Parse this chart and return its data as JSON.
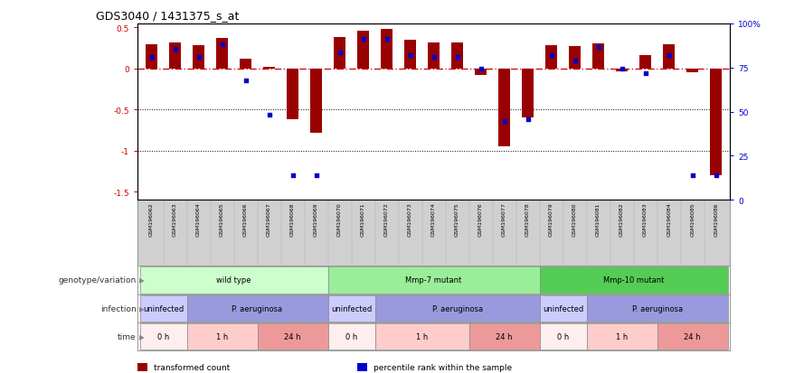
{
  "title": "GDS3040 / 1431375_s_at",
  "samples": [
    "GSM196062",
    "GSM196063",
    "GSM196064",
    "GSM196065",
    "GSM196066",
    "GSM196067",
    "GSM196068",
    "GSM196069",
    "GSM196070",
    "GSM196071",
    "GSM196072",
    "GSM196073",
    "GSM196074",
    "GSM196075",
    "GSM196076",
    "GSM196077",
    "GSM196078",
    "GSM196079",
    "GSM196080",
    "GSM196081",
    "GSM196082",
    "GSM196083",
    "GSM196084",
    "GSM196085",
    "GSM196086"
  ],
  "transformed_count": [
    0.3,
    0.32,
    0.28,
    0.37,
    0.12,
    0.02,
    -0.62,
    -0.78,
    0.38,
    0.46,
    0.48,
    0.35,
    0.32,
    0.32,
    -0.08,
    -0.95,
    -0.6,
    0.28,
    0.27,
    0.31,
    -0.03,
    0.16,
    0.3,
    -0.05,
    -1.3
  ],
  "percentile_rank": [
    82,
    87,
    82,
    90,
    68,
    47,
    10,
    10,
    85,
    93,
    93,
    83,
    82,
    82,
    75,
    43,
    44,
    83,
    80,
    88,
    75,
    72,
    83,
    10,
    10
  ],
  "bar_color": "#990000",
  "dot_color": "#0000cc",
  "ref_line_color": "#cc0000",
  "ylim": [
    -1.6,
    0.55
  ],
  "y_ticks": [
    0.5,
    0.0,
    -0.5,
    -1.0,
    -1.5
  ],
  "y_tick_labels": [
    "0.5",
    "0",
    "-0.5",
    "-1",
    "-1.5"
  ],
  "y2_ticks": [
    100,
    75,
    50,
    25,
    0
  ],
  "y2_tick_labels": [
    "100%",
    "75",
    "50",
    "25",
    "0"
  ],
  "genotype_groups": [
    {
      "label": "wild type",
      "start": 0,
      "end": 8,
      "color": "#ccffcc"
    },
    {
      "label": "Mmp-7 mutant",
      "start": 8,
      "end": 17,
      "color": "#99ee99"
    },
    {
      "label": "Mmp-10 mutant",
      "start": 17,
      "end": 25,
      "color": "#55cc55"
    }
  ],
  "infection_groups": [
    {
      "label": "uninfected",
      "start": 0,
      "end": 2,
      "color": "#ccccff"
    },
    {
      "label": "P. aeruginosa",
      "start": 2,
      "end": 8,
      "color": "#9999dd"
    },
    {
      "label": "uninfected",
      "start": 8,
      "end": 10,
      "color": "#ccccff"
    },
    {
      "label": "P. aeruginosa",
      "start": 10,
      "end": 17,
      "color": "#9999dd"
    },
    {
      "label": "uninfected",
      "start": 17,
      "end": 19,
      "color": "#ccccff"
    },
    {
      "label": "P. aeruginosa",
      "start": 19,
      "end": 25,
      "color": "#9999dd"
    }
  ],
  "time_groups": [
    {
      "label": "0 h",
      "start": 0,
      "end": 2,
      "color": "#ffeeee"
    },
    {
      "label": "1 h",
      "start": 2,
      "end": 5,
      "color": "#ffcccc"
    },
    {
      "label": "24 h",
      "start": 5,
      "end": 8,
      "color": "#ee9999"
    },
    {
      "label": "0 h",
      "start": 8,
      "end": 10,
      "color": "#ffeeee"
    },
    {
      "label": "1 h",
      "start": 10,
      "end": 14,
      "color": "#ffcccc"
    },
    {
      "label": "24 h",
      "start": 14,
      "end": 17,
      "color": "#ee9999"
    },
    {
      "label": "0 h",
      "start": 17,
      "end": 19,
      "color": "#ffeeee"
    },
    {
      "label": "1 h",
      "start": 19,
      "end": 22,
      "color": "#ffcccc"
    },
    {
      "label": "24 h",
      "start": 22,
      "end": 25,
      "color": "#ee9999"
    }
  ],
  "legend_items": [
    {
      "label": "transformed count",
      "color": "#990000"
    },
    {
      "label": "percentile rank within the sample",
      "color": "#0000cc"
    }
  ],
  "row_labels": [
    "genotype/variation",
    "infection",
    "time"
  ]
}
